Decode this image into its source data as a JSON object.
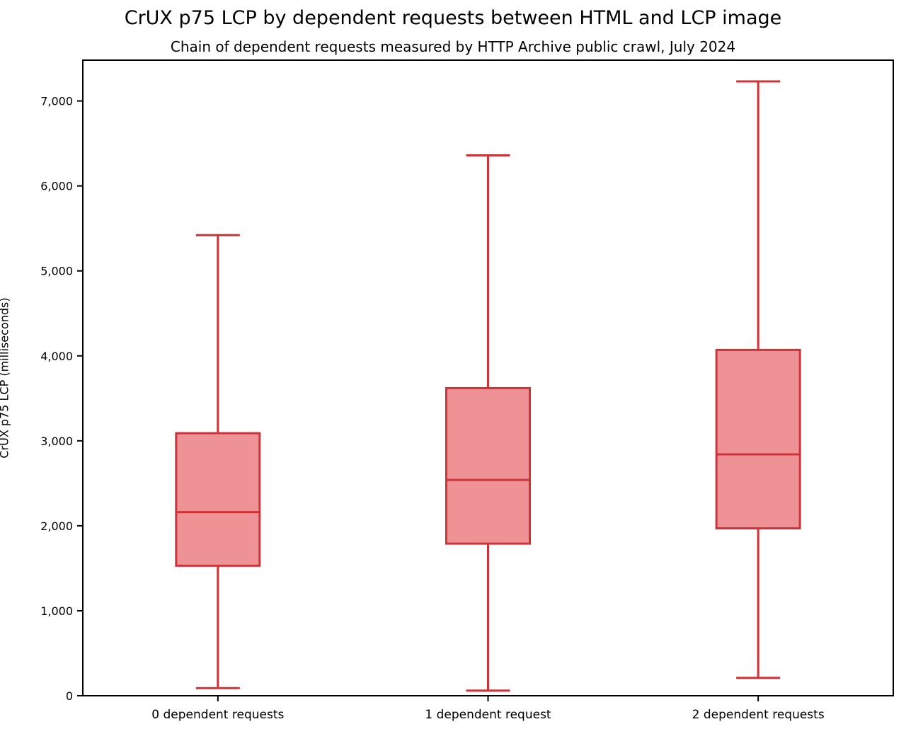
{
  "chart_data": {
    "type": "boxplot",
    "title": "CrUX p75 LCP by dependent requests between HTML and LCP image",
    "subtitle": "Chain of dependent requests measured by HTTP Archive public crawl, July 2024",
    "ylabel": "CrUX p75 LCP (milliseconds)",
    "xlabel": "",
    "categories": [
      "0 dependent requests",
      "1 dependent request",
      "2 dependent requests"
    ],
    "series": [
      {
        "category": "0 dependent requests",
        "whisker_low": 90,
        "q1": 1530,
        "median": 2160,
        "q3": 3090,
        "whisker_high": 5420
      },
      {
        "category": "1 dependent request",
        "whisker_low": 60,
        "q1": 1790,
        "median": 2540,
        "q3": 3620,
        "whisker_high": 6360
      },
      {
        "category": "2 dependent requests",
        "whisker_low": 210,
        "q1": 1970,
        "median": 2840,
        "q3": 4070,
        "whisker_high": 7230
      }
    ],
    "ylim": [
      0,
      7480
    ],
    "yticks": [
      0,
      1000,
      2000,
      3000,
      4000,
      5000,
      6000,
      7000
    ],
    "grid": false,
    "legend": "none",
    "colors": {
      "box_fill": "#ee9296",
      "box_stroke": "#cf3338",
      "axis": "#000000"
    }
  }
}
